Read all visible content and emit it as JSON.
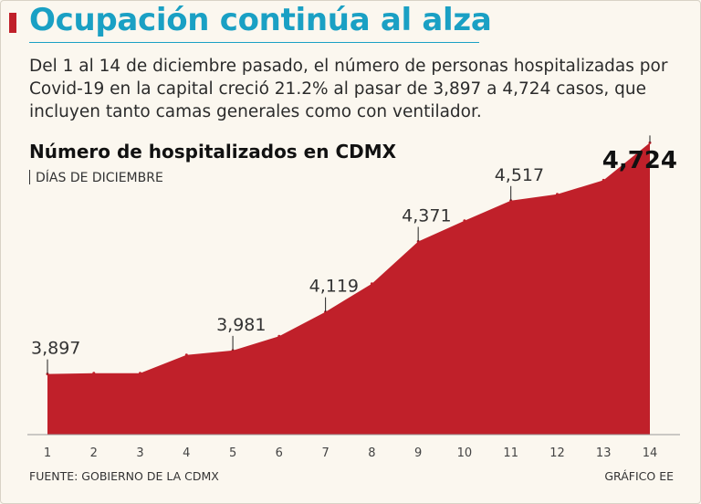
{
  "header": {
    "title": "Ocupación continúa al alza",
    "subtitle": "Del 1 al 14 de diciembre pasado, el número de personas hospitalizadas por Covid-19 en la capital creció 21.2% al pasar de 3,897 a 4,724 casos, que incluyen tanto camas generales como con ventilador."
  },
  "colors": {
    "headline": "#1aa0c4",
    "accent": "#c0202a",
    "area": "#c0202a",
    "background": "#fbf7ef"
  },
  "chart_data": {
    "type": "area",
    "title": "Número de hospitalizados en CDMX",
    "xlabel": "DÍAS DE DICIEMBRE",
    "ylabel": "",
    "x": [
      1,
      2,
      3,
      4,
      5,
      6,
      7,
      8,
      9,
      10,
      11,
      12,
      13,
      14
    ],
    "values": [
      3897,
      3900,
      3900,
      3965,
      3981,
      4032,
      4119,
      4220,
      4371,
      4445,
      4517,
      4540,
      4590,
      4724
    ],
    "ylim": [
      3680,
      4745
    ],
    "grid": false,
    "labels": [
      {
        "x": 1,
        "text": "3,897"
      },
      {
        "x": 5,
        "text": "3,981"
      },
      {
        "x": 7,
        "text": "4,119"
      },
      {
        "x": 9,
        "text": "4,371"
      },
      {
        "x": 11,
        "text": "4,517"
      },
      {
        "x": 14,
        "text": "4,724",
        "emphasis": true
      }
    ]
  },
  "footer": {
    "source": "FUENTE: GOBIERNO DE LA CDMX",
    "credit": "GRÁFICO EE"
  }
}
